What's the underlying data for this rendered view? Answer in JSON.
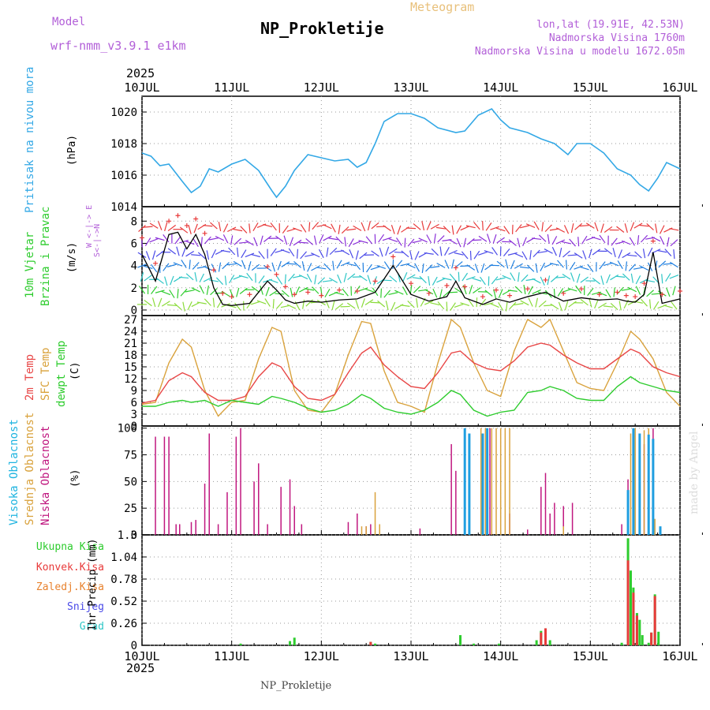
{
  "header": {
    "model_label": "Model",
    "model_name": "wrf-nmm_v3.9.1  e1km",
    "meteogram": "Meteogram",
    "station": "NP_Prokletije",
    "lonlat": "lon,lat (19.91E, 42.53N)",
    "elev": "Nadmorska Visina 1760m",
    "elev_model": "Nadmorska Visina u modelu 1672.05m",
    "year_top": "2025",
    "year_bottom": "2025",
    "footer": "NP_Prokletije",
    "credit": "made by Angel"
  },
  "colors": {
    "pressure": "#33a8e6",
    "wind_speed": "#000000",
    "gust": "#e83a3a",
    "t2m": "#e84646",
    "sfc": "#d9a23c",
    "dew": "#2ecc2e",
    "high": "#1f9ee0",
    "mid": "#d9a23c",
    "low": "#c0177f",
    "total": "#2ecc2e",
    "conv": "#e83a3a",
    "frozen": "#e8822e",
    "snow": "#4a4ae8",
    "hail": "#2ec6c6"
  },
  "panel_labels": {
    "pressure": {
      "name": "Pritisak na nivou mora",
      "unit": "(hPa)"
    },
    "wind": {
      "name1": "10m Vjetar",
      "name2": "Brzina i Pravac",
      "unit": "(m/s)",
      "compass": "W <-|-> E",
      "compass2": "S<-|->N"
    },
    "temp": {
      "t2m": "2m Temp",
      "sfc": "SFC Temp",
      "dew": "dewpt Temp",
      "unit": "(C)"
    },
    "cloud": {
      "high": "Visoka Oblacnost",
      "mid": "Srednja Oblacnost",
      "low": "Niska Oblacnost",
      "unit": "(%)"
    },
    "precip": {
      "total": "Ukupna Kisa",
      "conv": "Konvek.Kisa",
      "frozen": "Zaledj.Kisa",
      "snow": "Snijeg",
      "hail": "Grad",
      "unit": "1hr Precip (mm)"
    }
  },
  "chart_data": [
    {
      "type": "line",
      "title": "Pritisak na nivou mora",
      "ylabel": "(hPa)",
      "x_ticks": [
        "10JUL",
        "11JUL",
        "12JUL",
        "13JUL",
        "14JUL",
        "15JUL",
        "16JUL"
      ],
      "ylim": [
        1014,
        1021
      ],
      "y_ticks": [
        "1014",
        "1016",
        "1018",
        "1020"
      ],
      "x": [
        0,
        0.1,
        0.2,
        0.3,
        0.45,
        0.55,
        0.65,
        0.75,
        0.85,
        1.0,
        1.15,
        1.3,
        1.45,
        1.5,
        1.6,
        1.7,
        1.85,
        2.0,
        2.15,
        2.3,
        2.4,
        2.5,
        2.6,
        2.7,
        2.85,
        3.0,
        3.15,
        3.3,
        3.5,
        3.6,
        3.75,
        3.9,
        4.0,
        4.1,
        4.3,
        4.45,
        4.6,
        4.75,
        4.85,
        5.0,
        5.15,
        5.3,
        5.45,
        5.55,
        5.65,
        5.75,
        5.85,
        6.0
      ],
      "series": [
        {
          "name": "pressure",
          "values": [
            1017.4,
            1017.2,
            1016.6,
            1016.7,
            1015.6,
            1014.9,
            1015.3,
            1016.4,
            1016.2,
            1016.7,
            1017.0,
            1016.3,
            1015.0,
            1014.6,
            1015.3,
            1016.3,
            1017.3,
            1017.1,
            1016.9,
            1017.0,
            1016.5,
            1016.8,
            1018.0,
            1019.4,
            1019.9,
            1019.9,
            1019.6,
            1019.0,
            1018.7,
            1018.8,
            1019.8,
            1020.2,
            1019.5,
            1019.0,
            1018.7,
            1018.3,
            1018.0,
            1017.3,
            1018.0,
            1018.0,
            1017.4,
            1016.4,
            1016.0,
            1015.4,
            1015.0,
            1015.8,
            1016.8,
            1016.4
          ]
        }
      ]
    },
    {
      "type": "line",
      "title": "10m Vjetar Brzina i Pravac",
      "ylabel": "(m/s)",
      "ylim": [
        -0.5,
        9.3
      ],
      "y_ticks": [
        "0",
        "2",
        "4",
        "6",
        "8"
      ],
      "x": [
        0,
        0.15,
        0.3,
        0.4,
        0.5,
        0.6,
        0.7,
        0.8,
        0.9,
        1.0,
        1.2,
        1.4,
        1.5,
        1.6,
        1.7,
        1.85,
        2.0,
        2.2,
        2.4,
        2.6,
        2.8,
        3.0,
        3.2,
        3.4,
        3.5,
        3.6,
        3.8,
        3.95,
        4.1,
        4.3,
        4.5,
        4.7,
        4.9,
        5.1,
        5.3,
        5.4,
        5.5,
        5.6,
        5.7,
        5.8,
        6.0
      ],
      "series": [
        {
          "name": "speed",
          "values": [
            5.0,
            2.6,
            6.8,
            7.0,
            5.5,
            6.8,
            5.0,
            2.0,
            0.5,
            0.4,
            0.6,
            2.6,
            1.8,
            0.9,
            0.6,
            0.8,
            0.7,
            0.9,
            1.0,
            1.6,
            4.0,
            1.4,
            0.8,
            1.2,
            2.6,
            1.1,
            0.5,
            1.0,
            0.7,
            1.2,
            1.6,
            0.8,
            1.1,
            0.9,
            1.0,
            0.8,
            0.7,
            1.4,
            5.2,
            0.6,
            1.0
          ]
        },
        {
          "name": "gust",
          "values": [
            6.5,
            4.2,
            8.0,
            8.5,
            7.6,
            8.2,
            6.9,
            3.6,
            1.5,
            1.2,
            1.4,
            3.9,
            3.2,
            2.1,
            1.4,
            1.6,
            1.3,
            1.8,
            1.7,
            2.6,
            4.8,
            2.4,
            1.5,
            2.2,
            3.8,
            2.1,
            1.2,
            1.8,
            1.3,
            1.9,
            2.7,
            1.5,
            1.9,
            1.4,
            1.6,
            1.3,
            1.2,
            2.4,
            6.2,
            1.4,
            1.7
          ]
        }
      ]
    },
    {
      "type": "line",
      "title": "Temp",
      "ylabel": "(C)",
      "ylim": [
        0,
        28
      ],
      "y_ticks": [
        "0",
        "3",
        "6",
        "9",
        "12",
        "15",
        "18",
        "21",
        "24",
        "27"
      ],
      "x": [
        0,
        0.15,
        0.3,
        0.45,
        0.55,
        0.7,
        0.85,
        1.0,
        1.15,
        1.3,
        1.45,
        1.55,
        1.7,
        1.85,
        2.0,
        2.15,
        2.3,
        2.45,
        2.55,
        2.7,
        2.85,
        3.0,
        3.15,
        3.3,
        3.45,
        3.55,
        3.7,
        3.85,
        4.0,
        4.15,
        4.3,
        4.45,
        4.55,
        4.7,
        4.85,
        5.0,
        5.15,
        5.3,
        5.45,
        5.55,
        5.7,
        5.85,
        6.0
      ],
      "series": [
        {
          "name": "t2m",
          "values": [
            5.8,
            6.5,
            11.5,
            13.5,
            12.5,
            8.5,
            6.5,
            6.5,
            7.5,
            12.5,
            16.0,
            15.0,
            10.0,
            7.0,
            6.5,
            8.0,
            13.5,
            18.5,
            20.0,
            15.5,
            12.5,
            10.0,
            9.5,
            13.5,
            18.5,
            19.0,
            16.0,
            14.5,
            14.0,
            16.5,
            20.0,
            21.0,
            20.5,
            18.0,
            16.0,
            14.5,
            14.5,
            17.0,
            19.5,
            18.5,
            15.0,
            13.5,
            12.5
          ]
        },
        {
          "name": "sfc",
          "values": [
            5.5,
            6.0,
            16.0,
            22.0,
            20.0,
            9.0,
            2.5,
            6.0,
            6.5,
            17.0,
            25.0,
            24.0,
            9.0,
            4.0,
            3.5,
            8.0,
            18.0,
            26.5,
            26.0,
            14.0,
            6.0,
            5.0,
            3.5,
            16.0,
            27.0,
            25.0,
            16.0,
            9.0,
            7.5,
            19.0,
            27.0,
            25.0,
            27.0,
            19.0,
            11.0,
            9.5,
            9.0,
            16.0,
            24.0,
            22.0,
            17.0,
            8.5,
            5.0
          ]
        },
        {
          "name": "dew",
          "values": [
            5.0,
            5.0,
            6.0,
            6.5,
            6.0,
            6.5,
            5.0,
            6.5,
            6.0,
            5.5,
            7.5,
            7.0,
            6.0,
            4.5,
            3.5,
            4.0,
            5.5,
            8.0,
            7.0,
            4.5,
            3.5,
            3.0,
            4.0,
            6.0,
            9.0,
            8.0,
            4.0,
            2.5,
            3.5,
            4.0,
            8.5,
            9.0,
            10.0,
            9.0,
            7.0,
            6.5,
            6.5,
            10.0,
            12.5,
            11.0,
            10.0,
            9.0,
            8.5
          ]
        }
      ]
    },
    {
      "type": "bar",
      "title": "Oblacnost",
      "ylabel": "(%)",
      "ylim": [
        0,
        102
      ],
      "y_ticks": [
        "0",
        "25",
        "50",
        "75",
        "100"
      ],
      "series": [
        {
          "name": "low",
          "points": [
            [
              0.15,
              92
            ],
            [
              0.25,
              92
            ],
            [
              0.3,
              92
            ],
            [
              0.38,
              10
            ],
            [
              0.42,
              10
            ],
            [
              0.55,
              12
            ],
            [
              0.6,
              14
            ],
            [
              0.7,
              48
            ],
            [
              0.75,
              95
            ],
            [
              0.85,
              10
            ],
            [
              0.95,
              40
            ],
            [
              1.05,
              92
            ],
            [
              1.1,
              100
            ],
            [
              1.25,
              50
            ],
            [
              1.3,
              67
            ],
            [
              1.4,
              10
            ],
            [
              1.55,
              45
            ],
            [
              1.65,
              52
            ],
            [
              1.7,
              27
            ],
            [
              1.78,
              10
            ],
            [
              2.3,
              12
            ],
            [
              2.4,
              20
            ],
            [
              2.5,
              8
            ],
            [
              2.55,
              10
            ],
            [
              3.1,
              6
            ],
            [
              3.45,
              85
            ],
            [
              3.5,
              60
            ],
            [
              3.6,
              20
            ],
            [
              3.65,
              28
            ],
            [
              3.88,
              100
            ],
            [
              4.1,
              20
            ],
            [
              4.3,
              5
            ],
            [
              4.45,
              45
            ],
            [
              4.5,
              58
            ],
            [
              4.55,
              20
            ],
            [
              4.6,
              30
            ],
            [
              4.7,
              27
            ],
            [
              4.8,
              30
            ],
            [
              5.35,
              10
            ],
            [
              5.42,
              52
            ],
            [
              5.6,
              85
            ],
            [
              5.7,
              100
            ]
          ]
        },
        {
          "name": "mid",
          "points": [
            [
              2.45,
              8
            ],
            [
              2.5,
              8
            ],
            [
              2.6,
              40
            ],
            [
              2.65,
              10
            ],
            [
              3.78,
              100
            ],
            [
              3.83,
              100
            ],
            [
              3.9,
              100
            ],
            [
              3.95,
              100
            ],
            [
              4.0,
              100
            ],
            [
              4.05,
              100
            ],
            [
              4.1,
              100
            ],
            [
              4.7,
              8
            ],
            [
              5.45,
              95
            ],
            [
              5.5,
              100
            ],
            [
              5.6,
              98
            ],
            [
              5.65,
              100
            ],
            [
              5.72,
              15
            ]
          ]
        },
        {
          "name": "high",
          "points": [
            [
              3.6,
              100
            ],
            [
              3.65,
              95
            ],
            [
              3.8,
              95
            ],
            [
              3.85,
              100
            ],
            [
              5.42,
              42
            ],
            [
              5.48,
              100
            ],
            [
              5.55,
              95
            ],
            [
              5.65,
              94
            ],
            [
              5.7,
              90
            ],
            [
              5.78,
              8
            ]
          ]
        }
      ]
    },
    {
      "type": "bar",
      "title": "1hr Precip",
      "ylabel": "1hr Precip (mm)",
      "ylim": [
        0,
        1.3
      ],
      "y_ticks": [
        "0",
        "0.26",
        "0.52",
        "0.78",
        "1.04",
        "1.3"
      ],
      "series": [
        {
          "name": "total",
          "points": [
            [
              1.1,
              0.02
            ],
            [
              1.7,
              0.09
            ],
            [
              1.65,
              0.05
            ],
            [
              2.55,
              0.04
            ],
            [
              2.6,
              0.02
            ],
            [
              3.55,
              0.12
            ],
            [
              3.7,
              0.02
            ],
            [
              3.98,
              0.02
            ],
            [
              4.4,
              0.06
            ],
            [
              4.45,
              0.17
            ],
            [
              4.5,
              0.2
            ],
            [
              4.55,
              0.06
            ],
            [
              5.35,
              0.03
            ],
            [
              5.42,
              1.26
            ],
            [
              5.45,
              0.88
            ],
            [
              5.48,
              0.68
            ],
            [
              5.52,
              0.38
            ],
            [
              5.55,
              0.3
            ],
            [
              5.58,
              0.12
            ],
            [
              5.65,
              0.03
            ],
            [
              5.68,
              0.15
            ],
            [
              5.72,
              0.6
            ],
            [
              5.76,
              0.16
            ]
          ]
        },
        {
          "name": "conv",
          "points": [
            [
              2.55,
              0.04
            ],
            [
              4.45,
              0.15
            ],
            [
              4.5,
              0.2
            ],
            [
              5.42,
              1.0
            ],
            [
              5.48,
              0.62
            ],
            [
              5.52,
              0.35
            ],
            [
              5.68,
              0.15
            ],
            [
              5.72,
              0.58
            ]
          ]
        }
      ]
    }
  ]
}
